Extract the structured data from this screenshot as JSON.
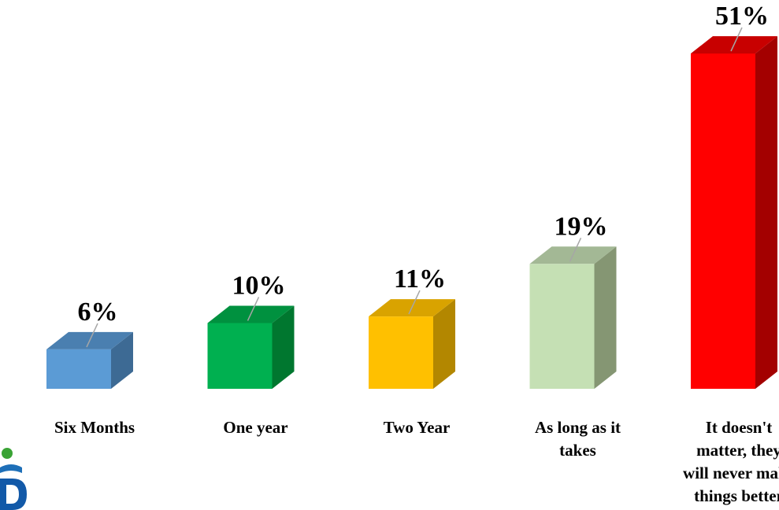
{
  "chart_data": {
    "type": "bar",
    "categories": [
      [
        "Six Months"
      ],
      [
        "One year"
      ],
      [
        "Two Year"
      ],
      [
        "As long as it",
        "takes"
      ],
      [
        "It doesn't",
        "matter, they",
        "will never make",
        "things better"
      ]
    ],
    "values": [
      6,
      10,
      11,
      19,
      51
    ],
    "value_labels": [
      "6%",
      "10%",
      "11%",
      "19%",
      "51%"
    ],
    "unit": "%",
    "ylim": [
      0,
      51
    ],
    "grid": false,
    "legend": "none",
    "colors": {
      "front": [
        "#5b9bd5",
        "#00b050",
        "#ffc000",
        "#c5e0b4",
        "#ff0000"
      ],
      "top": [
        "#4a7fb0",
        "#00913f",
        "#d9a300",
        "#a3b895",
        "#c80000"
      ],
      "side": [
        "#3d6a94",
        "#00772f",
        "#b38700",
        "#859673",
        "#a30000"
      ]
    }
  },
  "logo": {
    "icon": "company-logo-icon",
    "colors": {
      "dot": "#3aa335",
      "arc": "#1e6fb8",
      "letter": "#1259a8"
    }
  }
}
